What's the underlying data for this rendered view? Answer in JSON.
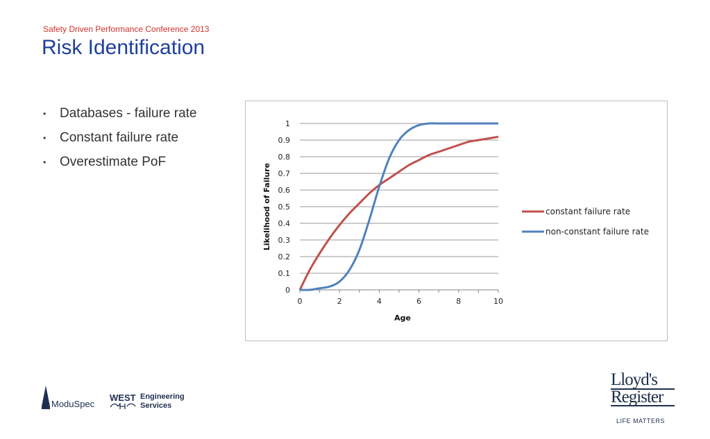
{
  "header": {
    "subtitle": "Safety Driven Performance Conference 2013",
    "title": "Risk Identification"
  },
  "bullets": [
    "Databases - failure rate",
    "Constant failure rate",
    "Overestimate PoF"
  ],
  "colors": {
    "title": "#1f3f9b",
    "subtitle": "#d0312d",
    "constant_series": "#c0504d",
    "nonconstant_series": "#4f81bd"
  },
  "chart_data": {
    "type": "line",
    "xlabel": "Age",
    "ylabel": "Likelihood of Failure",
    "xlim": [
      0,
      10
    ],
    "ylim": [
      0,
      1
    ],
    "x_ticks": [
      "0",
      "2",
      "4",
      "6",
      "8",
      "10"
    ],
    "y_ticks": [
      "0",
      "0.1",
      "0.2",
      "0.3",
      "0.4",
      "0.5",
      "0.6",
      "0.7",
      "0.8",
      "0.9",
      "1"
    ],
    "grid": "horizontal",
    "legend_position": "right",
    "x": [
      0,
      0.5,
      1,
      1.5,
      2,
      2.5,
      3,
      3.5,
      4,
      4.5,
      5,
      5.5,
      6,
      6.5,
      7,
      7.5,
      8,
      8.5,
      9,
      9.5,
      10
    ],
    "series": [
      {
        "name": "constant failure rate",
        "values": [
          0,
          0.12,
          0.22,
          0.31,
          0.39,
          0.46,
          0.52,
          0.58,
          0.63,
          0.67,
          0.71,
          0.75,
          0.78,
          0.81,
          0.83,
          0.85,
          0.87,
          0.89,
          0.9,
          0.91,
          0.92
        ]
      },
      {
        "name": "non-constant failure rate",
        "values": [
          0,
          0.0,
          0.01,
          0.02,
          0.05,
          0.12,
          0.24,
          0.42,
          0.62,
          0.79,
          0.9,
          0.96,
          0.99,
          1.0,
          1.0,
          1.0,
          1.0,
          1.0,
          1.0,
          1.0,
          1.0
        ]
      }
    ]
  },
  "logos": {
    "moduspec": "ModuSpec",
    "west": "WEST",
    "west_line1": "Engineering",
    "west_line2": "Services",
    "lloyds_line1": "Lloyd's",
    "lloyds_line2": "Register",
    "tagline": "LIFE MATTERS"
  }
}
